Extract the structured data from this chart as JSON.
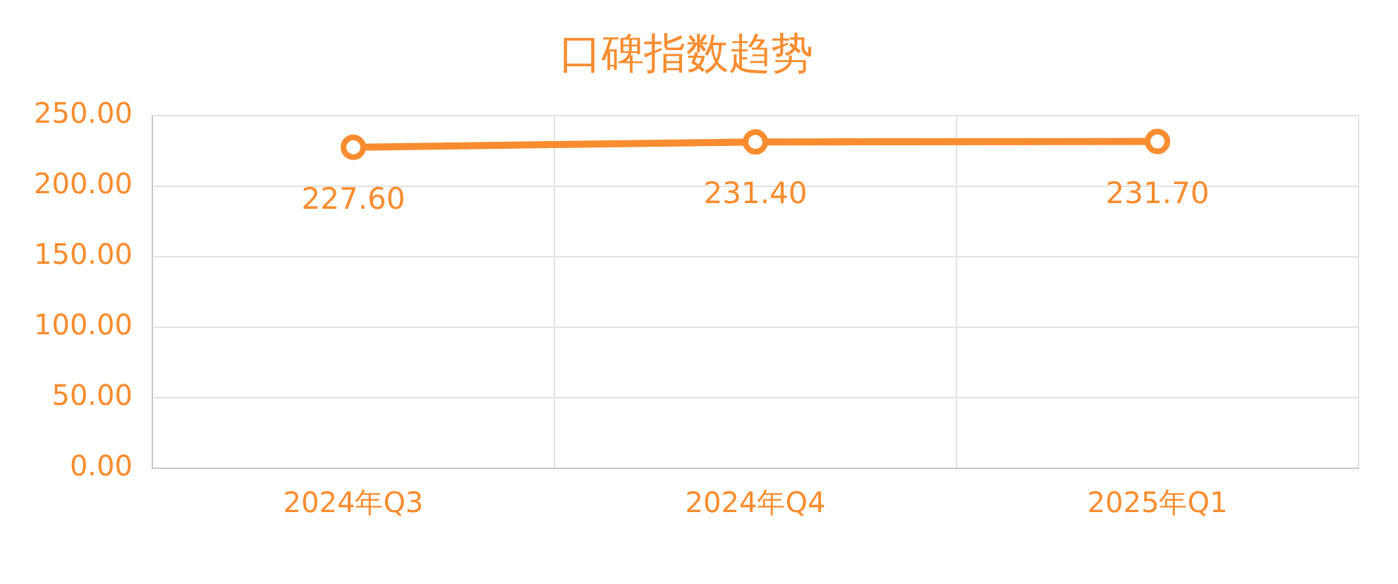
{
  "chart_data": {
    "type": "line",
    "title": "口碑指数趋势",
    "categories": [
      "2024年Q3",
      "2024年Q4",
      "2025年Q1"
    ],
    "series": [
      {
        "color": "#f98c2f",
        "values": [
          227.6,
          231.4,
          231.7
        ],
        "value_labels": [
          "227.60",
          "231.40",
          "231.70"
        ]
      }
    ],
    "ylim": [
      0,
      250
    ],
    "yticks": [
      {
        "value": 0,
        "label": "0.00"
      },
      {
        "value": 50,
        "label": "50.00"
      },
      {
        "value": 100,
        "label": "100.00"
      },
      {
        "value": 150,
        "label": "150.00"
      },
      {
        "value": 200,
        "label": "200.00"
      },
      {
        "value": 250,
        "label": "250.00"
      }
    ],
    "grid": true,
    "legend": false,
    "marker": "circle",
    "line_style": "solid"
  }
}
